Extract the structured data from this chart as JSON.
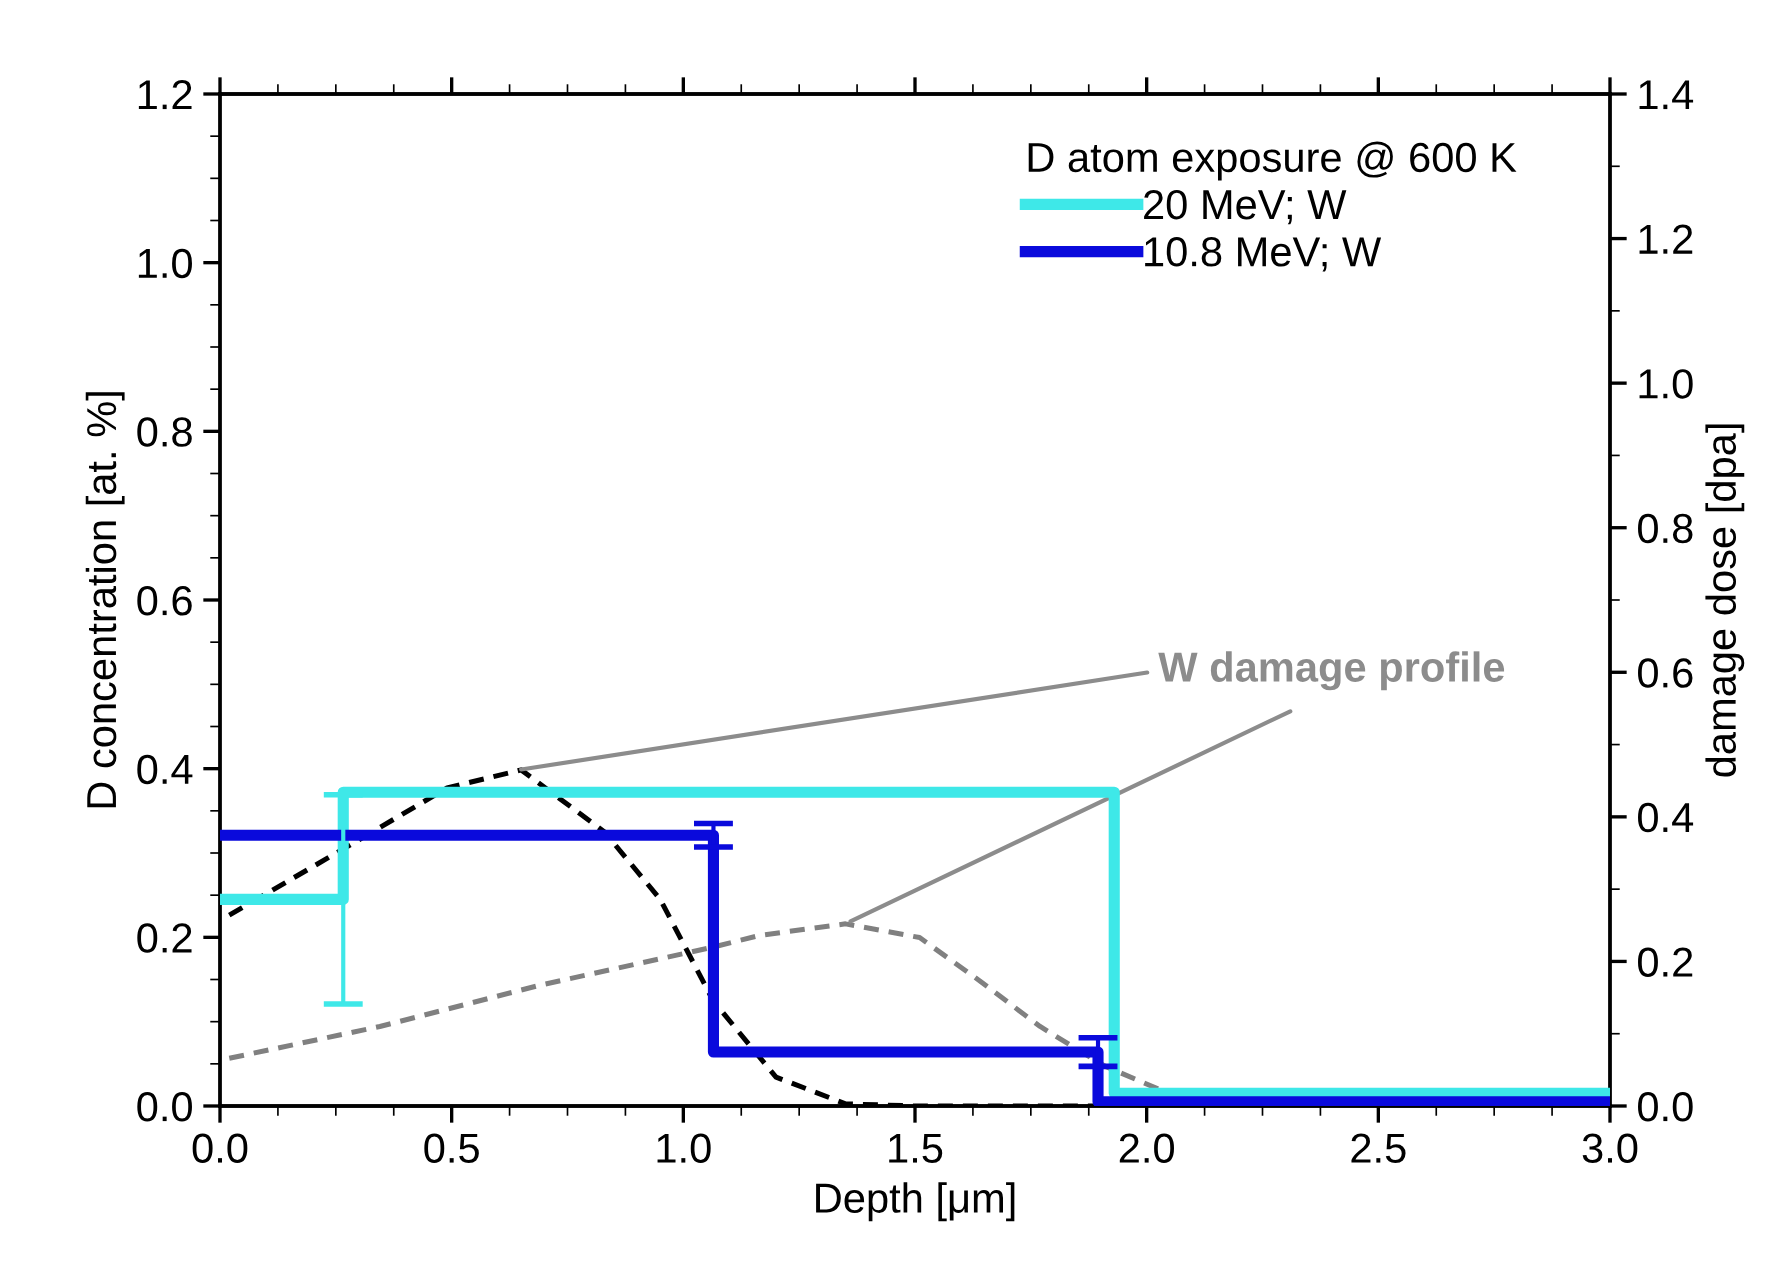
{
  "chart_data": {
    "type": "step",
    "xlabel": "Depth [μm]",
    "ylabel": "D concentration [at. %]",
    "y2label": "damage dose [dpa]",
    "legend_title": "D atom exposure @ 600 K",
    "legend": "top right",
    "grid": false,
    "xlim": [
      0,
      3.0
    ],
    "xticks": [
      {
        "value": 0,
        "label": "0.0"
      },
      0.5,
      {
        "value": 1,
        "label": "1.0"
      },
      1.5,
      {
        "value": 2,
        "label": "2.0"
      },
      2.5,
      {
        "value": 3,
        "label": "3.0"
      }
    ],
    "ylim": [
      0,
      1.2
    ],
    "yticks": [
      {
        "value": 0,
        "label": "0.0"
      },
      0.2,
      0.4,
      0.6,
      0.8,
      {
        "value": 1,
        "label": "1.0"
      },
      1.2
    ],
    "y2lim": [
      0,
      1.4
    ],
    "y2ticks": [
      {
        "value": 0,
        "label": "0.0"
      },
      0.2,
      0.4,
      0.6,
      0.8,
      {
        "value": 1,
        "label": "1.0"
      },
      1.2,
      1.4
    ],
    "series": [
      {
        "name": "20 MeV; W",
        "color": "#3ee8e8",
        "line_style": "solid",
        "x": [
          0,
          0.266,
          1.93,
          3.0
        ],
        "values": [
          0.245,
          0.245,
          0.372,
          0.015
        ],
        "errors": [
          null,
          0.124,
          null,
          null
        ]
      },
      {
        "name": "10.8 MeV; W",
        "color": "#0a0adc",
        "line_style": "solid",
        "x": [
          0,
          1.065,
          1.895,
          3.0
        ],
        "values": [
          0.321,
          0.321,
          0.064,
          0.005
        ],
        "errors": [
          null,
          0.014,
          0.017,
          null
        ]
      },
      {
        "type": "line",
        "axis": "y2",
        "color": "#000000",
        "line_style": "dashed",
        "x": [
          0.02,
          0.27,
          0.49,
          0.65,
          0.83,
          0.95,
          1.065,
          1.2,
          1.35,
          1.5,
          2.0
        ],
        "values": [
          0.264,
          0.357,
          0.44,
          0.465,
          0.379,
          0.286,
          0.145,
          0.04,
          0.003,
          0.0,
          0.0
        ]
      },
      {
        "type": "line",
        "axis": "y2",
        "color": "#808080",
        "line_style": "dashed",
        "x": [
          0.02,
          0.345,
          0.69,
          1.065,
          1.165,
          1.35,
          1.51,
          1.64,
          1.77,
          1.91,
          2.06,
          2.26,
          3.0
        ],
        "values": [
          0.066,
          0.11,
          0.167,
          0.22,
          0.236,
          0.252,
          0.233,
          0.173,
          0.11,
          0.055,
          0.014,
          0.0,
          0.0
        ]
      }
    ],
    "annotations": [
      {
        "text": "W damage profile",
        "x": 0.65,
        "y": 0.399
      }
    ]
  }
}
